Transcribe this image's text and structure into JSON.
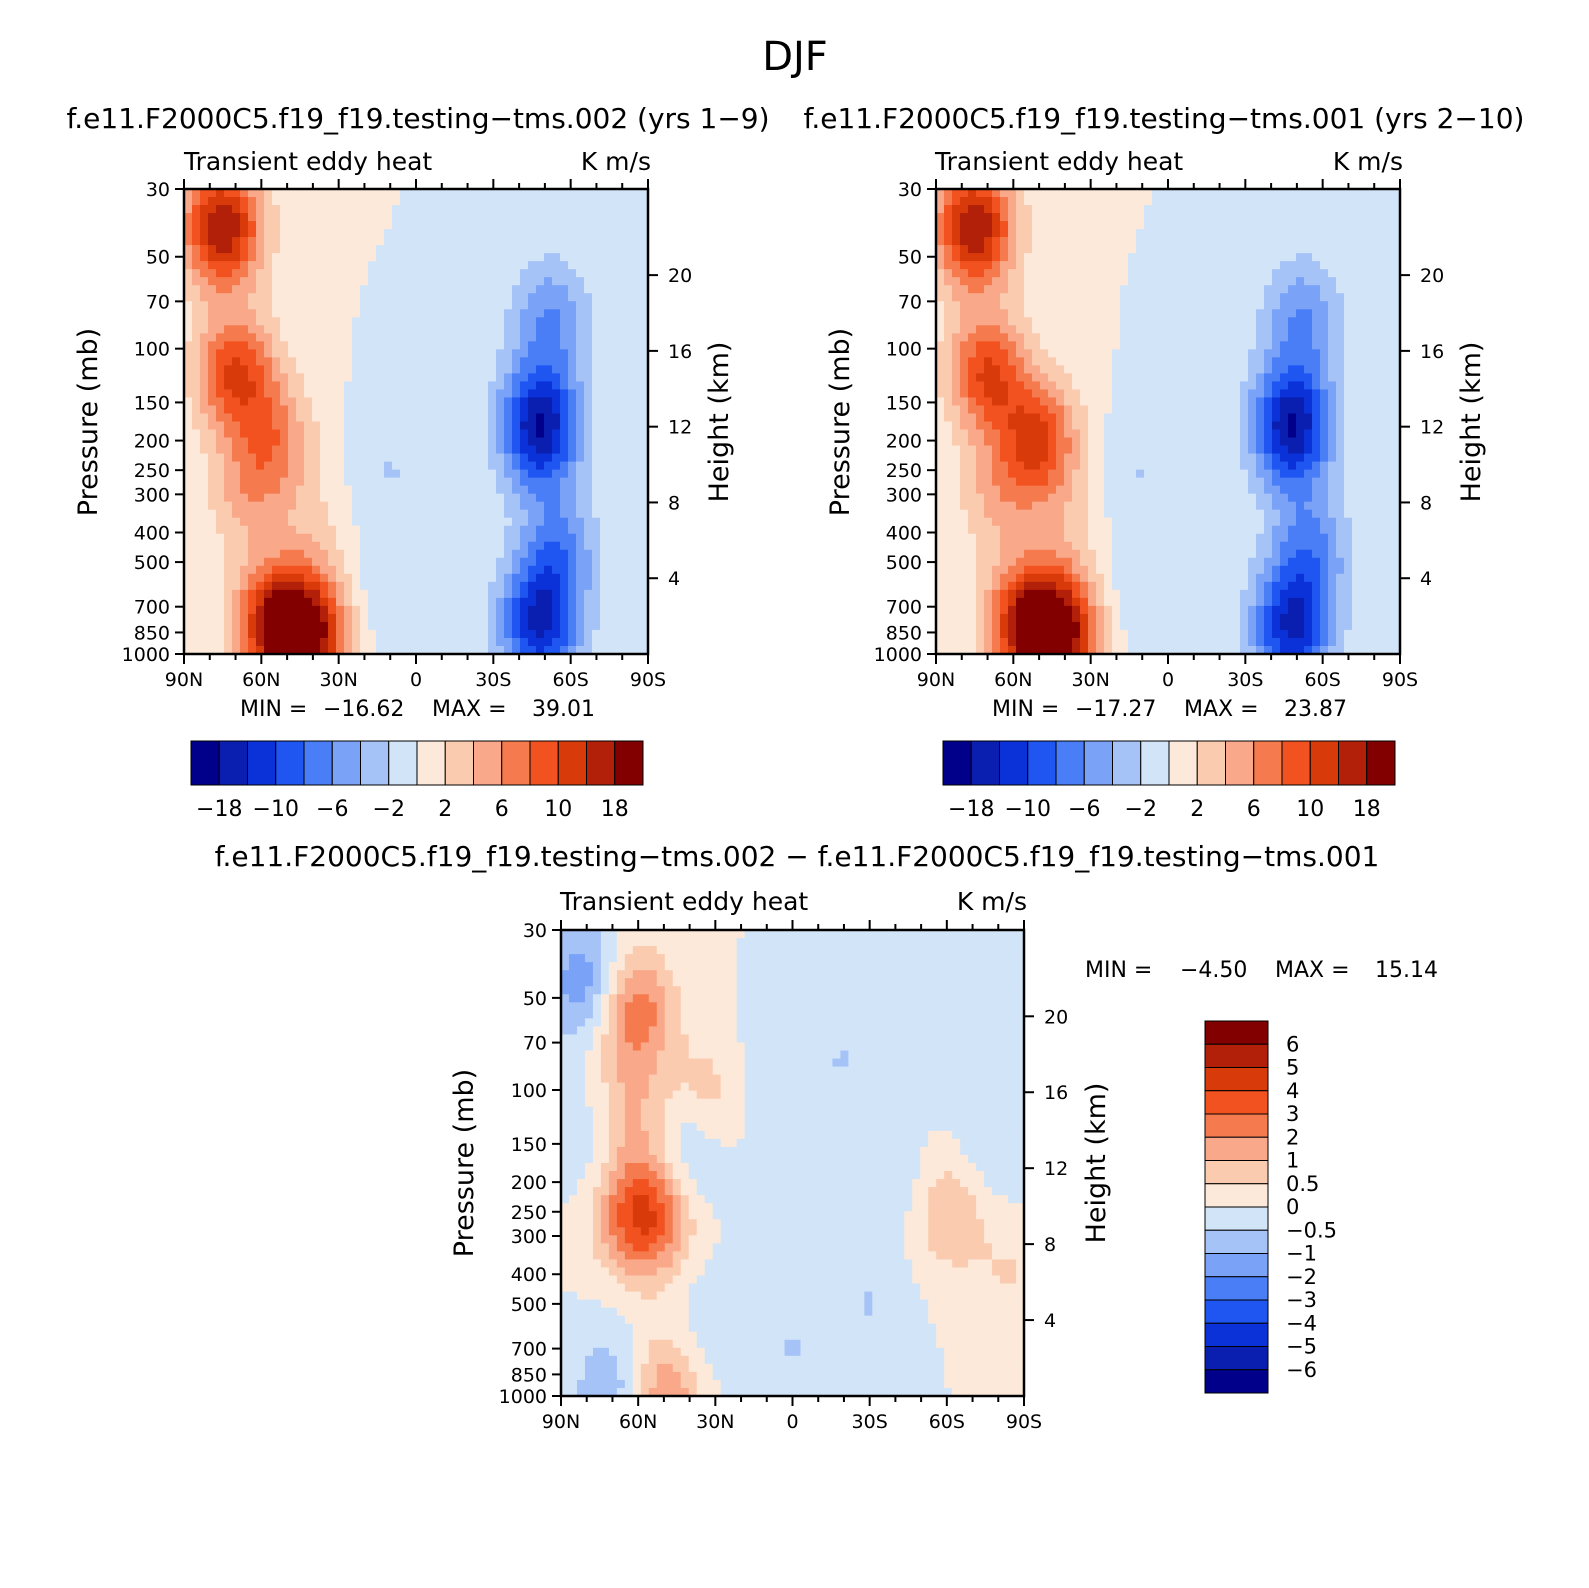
{
  "figure": {
    "title": "DJF",
    "colors": {
      "blues": [
        "#00008a",
        "#0a1fb0",
        "#0a32d8",
        "#1f55f0",
        "#4a7ef7",
        "#7aa2f7",
        "#a6c3f7",
        "#d2e5f8"
      ],
      "reds": [
        "#fde9d9",
        "#fbcbb0",
        "#f9a98a",
        "#f57b4f",
        "#f2521f",
        "#d93a0a",
        "#b3200a",
        "#820000"
      ]
    }
  },
  "chart_data": [
    {
      "type": "heatmap",
      "title": "f.e11.F2000C5.f19_f19.testing−tms.002 (yrs 1−9)",
      "left_label": "Transient eddy heat",
      "right_label": "K m/s",
      "xlabel": "",
      "ylabel": "Pressure (mb)",
      "y2label": "Height (km)",
      "x_ticks": [
        "90N",
        "60N",
        "30N",
        "0",
        "30S",
        "60S",
        "90S"
      ],
      "y_ticks": [
        "30",
        "50",
        "70",
        "100",
        "150",
        "200",
        "250",
        "300",
        "400",
        "500",
        "700",
        "850",
        "1000"
      ],
      "y2_ticks": [
        "20",
        "16",
        "12",
        "8",
        "4"
      ],
      "y_scale": "log",
      "ylim": [
        1000,
        30
      ],
      "xlim": [
        "90N",
        "90S"
      ],
      "min_label": "MIN =",
      "min_value": "−16.62",
      "max_label": "MAX =",
      "max_value": "39.01",
      "colorbar_labels": [
        "−18",
        "−10",
        "−6",
        "−2",
        "2",
        "6",
        "10",
        "18"
      ],
      "colorbar_orientation": "horizontal",
      "blobs": [
        {
          "lat": 75,
          "p": 40,
          "v": 7
        },
        {
          "lat": 70,
          "p": 120,
          "v": 5
        },
        {
          "lat": 66,
          "p": 300,
          "v": 2
        },
        {
          "lat": 55,
          "p": 200,
          "v": 3
        },
        {
          "lat": 55,
          "p": 800,
          "v": 6
        },
        {
          "lat": 42,
          "p": 870,
          "v": 7
        },
        {
          "lat": 40,
          "p": 400,
          "v": 1
        },
        {
          "lat": -48,
          "p": 180,
          "v": -7
        },
        {
          "lat": -48,
          "p": 800,
          "v": -6
        },
        {
          "lat": -52,
          "p": 80,
          "v": -3
        },
        {
          "lat": -55,
          "p": 450,
          "v": -3
        },
        {
          "lat": 10,
          "p": 250,
          "v": -1
        },
        {
          "lat": 10,
          "p": 600,
          "v": -1
        },
        {
          "lat": -20,
          "p": 500,
          "v": 0
        },
        {
          "lat": -80,
          "p": 300,
          "v": 0
        }
      ]
    },
    {
      "type": "heatmap",
      "title": "f.e11.F2000C5.f19_f19.testing−tms.001 (yrs 2−10)",
      "left_label": "Transient eddy heat",
      "right_label": "K m/s",
      "xlabel": "",
      "ylabel": "Pressure (mb)",
      "y2label": "Height (km)",
      "x_ticks": [
        "90N",
        "60N",
        "30N",
        "0",
        "30S",
        "60S",
        "90S"
      ],
      "y_ticks": [
        "30",
        "50",
        "70",
        "100",
        "150",
        "200",
        "250",
        "300",
        "400",
        "500",
        "700",
        "850",
        "1000"
      ],
      "y2_ticks": [
        "20",
        "16",
        "12",
        "8",
        "4"
      ],
      "y_scale": "log",
      "ylim": [
        1000,
        30
      ],
      "xlim": [
        "90N",
        "90S"
      ],
      "min_label": "MIN =",
      "min_value": "−17.27",
      "max_label": "MAX =",
      "max_value": "23.87",
      "colorbar_labels": [
        "−18",
        "−10",
        "−6",
        "−2",
        "2",
        "6",
        "10",
        "18"
      ],
      "colorbar_orientation": "horizontal",
      "blobs": [
        {
          "lat": 75,
          "p": 40,
          "v": 7
        },
        {
          "lat": 70,
          "p": 120,
          "v": 5
        },
        {
          "lat": 66,
          "p": 300,
          "v": 2
        },
        {
          "lat": 50,
          "p": 200,
          "v": 5
        },
        {
          "lat": 55,
          "p": 800,
          "v": 6
        },
        {
          "lat": 42,
          "p": 870,
          "v": 7
        },
        {
          "lat": 40,
          "p": 400,
          "v": 1
        },
        {
          "lat": -48,
          "p": 180,
          "v": -7
        },
        {
          "lat": -48,
          "p": 820,
          "v": -6
        },
        {
          "lat": -52,
          "p": 80,
          "v": -3
        },
        {
          "lat": -55,
          "p": 450,
          "v": -3
        },
        {
          "lat": 10,
          "p": 250,
          "v": -1
        },
        {
          "lat": 10,
          "p": 600,
          "v": -1
        },
        {
          "lat": -20,
          "p": 500,
          "v": 0
        },
        {
          "lat": -80,
          "p": 300,
          "v": 0
        }
      ]
    },
    {
      "type": "heatmap",
      "title": "f.e11.F2000C5.f19_f19.testing−tms.002 − f.e11.F2000C5.f19_f19.testing−tms.001",
      "left_label": "Transient eddy heat",
      "right_label": "K m/s",
      "xlabel": "",
      "ylabel": "Pressure (mb)",
      "y2label": "Height (km)",
      "x_ticks": [
        "90N",
        "60N",
        "30N",
        "0",
        "30S",
        "60S",
        "90S"
      ],
      "y_ticks": [
        "30",
        "50",
        "70",
        "100",
        "150",
        "200",
        "250",
        "300",
        "400",
        "500",
        "700",
        "850",
        "1000"
      ],
      "y2_ticks": [
        "20",
        "16",
        "12",
        "8",
        "4"
      ],
      "y_scale": "log",
      "ylim": [
        1000,
        30
      ],
      "xlim": [
        "90N",
        "90S"
      ],
      "min_label": "MIN =",
      "min_value": "−4.50",
      "max_label": "MAX =",
      "max_value": "15.14",
      "colorbar_labels": [
        "6",
        "5",
        "4",
        "3",
        "2",
        "1",
        "0.5",
        "0",
        "−0.5",
        "−1",
        "−2",
        "−3",
        "−4",
        "−5",
        "−6"
      ],
      "colorbar_orientation": "vertical",
      "blobs": [
        {
          "lat": 80,
          "p": 45,
          "v": -3
        },
        {
          "lat": 78,
          "p": 150,
          "v": -1
        },
        {
          "lat": 62,
          "p": 55,
          "v": 4
        },
        {
          "lat": 62,
          "p": 120,
          "v": 2
        },
        {
          "lat": 55,
          "p": 260,
          "v": 4
        },
        {
          "lat": 65,
          "p": 250,
          "v": 2
        },
        {
          "lat": 40,
          "p": 150,
          "v": -2
        },
        {
          "lat": 33,
          "p": 110,
          "v": 2
        },
        {
          "lat": 10,
          "p": 100,
          "v": -1
        },
        {
          "lat": -20,
          "p": 80,
          "v": -1
        },
        {
          "lat": -40,
          "p": 200,
          "v": -1
        },
        {
          "lat": -60,
          "p": 250,
          "v": 2
        },
        {
          "lat": -75,
          "p": 50,
          "v": -1
        },
        {
          "lat": -78,
          "p": 150,
          "v": -1
        },
        {
          "lat": 50,
          "p": 980,
          "v": 3
        },
        {
          "lat": 70,
          "p": 950,
          "v": -2
        },
        {
          "lat": 30,
          "p": 600,
          "v": -1
        },
        {
          "lat": 0,
          "p": 700,
          "v": -1
        },
        {
          "lat": -30,
          "p": 500,
          "v": -1
        },
        {
          "lat": -85,
          "p": 400,
          "v": 1
        }
      ]
    }
  ]
}
